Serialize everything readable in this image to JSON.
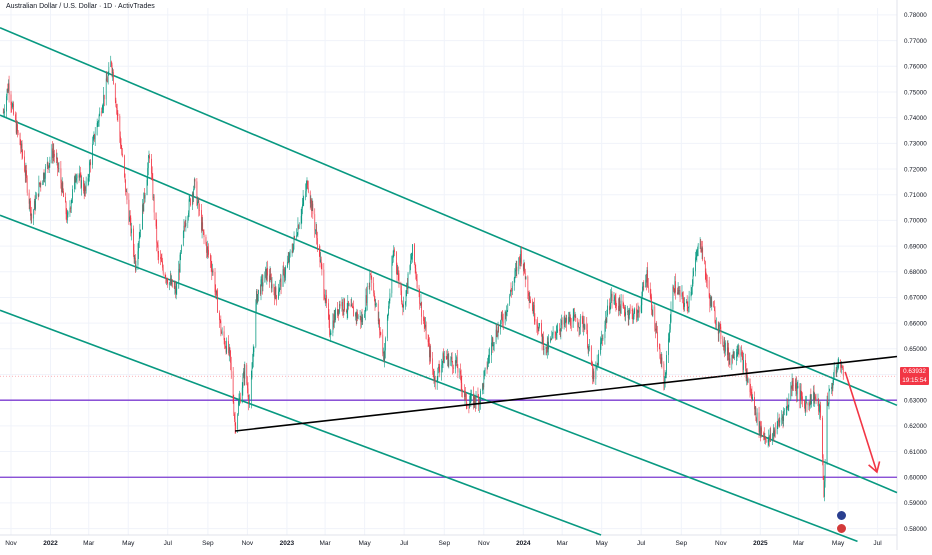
{
  "chart_data": {
    "type": "line",
    "title": "Australian Dollar / U.S. Dollar · 1D · ActivTrades",
    "last_price": "0.63932",
    "countdown": "19:15:54",
    "x_ticks": [
      "Nov",
      "2022",
      "Mar",
      "May",
      "Jul",
      "Sep",
      "Nov",
      "2023",
      "Mar",
      "May",
      "Jul",
      "Sep",
      "Nov",
      "2024",
      "Mar",
      "May",
      "Jul",
      "Sep",
      "Nov",
      "2025",
      "Mar",
      "May",
      "Jul"
    ],
    "y_ticks": [
      "0.78000",
      "0.77000",
      "0.76000",
      "0.75000",
      "0.74000",
      "0.73000",
      "0.72000",
      "0.71000",
      "0.70000",
      "0.69000",
      "0.68000",
      "0.67000",
      "0.66000",
      "0.65000",
      "0.64000",
      "0.63000",
      "0.62000",
      "0.61000",
      "0.60000",
      "0.59000",
      "0.58000"
    ],
    "ylim": [
      0.5775,
      0.7827
    ],
    "xlim": [
      "2021-10-15",
      "2025-07-31"
    ],
    "price_path": [
      [
        "2021-10-20",
        0.742
      ],
      [
        "2021-10-28",
        0.753
      ],
      [
        "2021-11-05",
        0.741
      ],
      [
        "2021-11-20",
        0.724
      ],
      [
        "2021-12-03",
        0.701
      ],
      [
        "2021-12-15",
        0.714
      ],
      [
        "2022-01-05",
        0.727
      ],
      [
        "2022-01-15",
        0.718
      ],
      [
        "2022-01-27",
        0.7
      ],
      [
        "2022-02-10",
        0.719
      ],
      [
        "2022-02-24",
        0.711
      ],
      [
        "2022-03-10",
        0.733
      ],
      [
        "2022-03-25",
        0.749
      ],
      [
        "2022-04-05",
        0.762
      ],
      [
        "2022-04-14",
        0.742
      ],
      [
        "2022-04-28",
        0.71
      ],
      [
        "2022-05-12",
        0.683
      ],
      [
        "2022-05-26",
        0.71
      ],
      [
        "2022-06-03",
        0.726
      ],
      [
        "2022-06-16",
        0.686
      ],
      [
        "2022-07-01",
        0.677
      ],
      [
        "2022-07-14",
        0.672
      ],
      [
        "2022-07-28",
        0.7
      ],
      [
        "2022-08-11",
        0.714
      ],
      [
        "2022-08-25",
        0.694
      ],
      [
        "2022-09-08",
        0.681
      ],
      [
        "2022-09-22",
        0.656
      ],
      [
        "2022-10-05",
        0.647
      ],
      [
        "2022-10-13",
        0.62
      ],
      [
        "2022-10-28",
        0.642
      ],
      [
        "2022-11-05",
        0.628
      ],
      [
        "2022-11-15",
        0.67
      ],
      [
        "2022-12-01",
        0.68
      ],
      [
        "2022-12-15",
        0.671
      ],
      [
        "2023-01-05",
        0.685
      ],
      [
        "2023-01-20",
        0.7
      ],
      [
        "2023-02-02",
        0.715
      ],
      [
        "2023-02-20",
        0.687
      ],
      [
        "2023-03-08",
        0.657
      ],
      [
        "2023-03-24",
        0.668
      ],
      [
        "2023-04-10",
        0.665
      ],
      [
        "2023-04-28",
        0.661
      ],
      [
        "2023-05-10",
        0.68
      ],
      [
        "2023-05-31",
        0.647
      ],
      [
        "2023-06-15",
        0.689
      ],
      [
        "2023-06-30",
        0.666
      ],
      [
        "2023-07-14",
        0.688
      ],
      [
        "2023-07-28",
        0.665
      ],
      [
        "2023-08-17",
        0.638
      ],
      [
        "2023-09-01",
        0.647
      ],
      [
        "2023-09-20",
        0.644
      ],
      [
        "2023-10-05",
        0.629
      ],
      [
        "2023-10-26",
        0.631
      ],
      [
        "2023-11-14",
        0.653
      ],
      [
        "2023-12-04",
        0.664
      ],
      [
        "2023-12-28",
        0.687
      ],
      [
        "2024-01-12",
        0.669
      ],
      [
        "2024-02-05",
        0.649
      ],
      [
        "2024-02-22",
        0.658
      ],
      [
        "2024-03-12",
        0.661
      ],
      [
        "2024-04-05",
        0.66
      ],
      [
        "2024-04-19",
        0.637
      ],
      [
        "2024-05-02",
        0.655
      ],
      [
        "2024-05-15",
        0.67
      ],
      [
        "2024-06-05",
        0.665
      ],
      [
        "2024-06-25",
        0.663
      ],
      [
        "2024-07-10",
        0.679
      ],
      [
        "2024-07-25",
        0.654
      ],
      [
        "2024-08-06",
        0.637
      ],
      [
        "2024-08-20",
        0.675
      ],
      [
        "2024-09-10",
        0.666
      ],
      [
        "2024-09-30",
        0.693
      ],
      [
        "2024-10-14",
        0.67
      ],
      [
        "2024-10-31",
        0.656
      ],
      [
        "2024-11-15",
        0.646
      ],
      [
        "2024-11-28",
        0.651
      ],
      [
        "2024-12-12",
        0.638
      ],
      [
        "2024-12-31",
        0.619
      ],
      [
        "2025-01-14",
        0.614
      ],
      [
        "2025-01-31",
        0.622
      ],
      [
        "2025-02-12",
        0.628
      ],
      [
        "2025-02-20",
        0.638
      ],
      [
        "2025-03-10",
        0.628
      ],
      [
        "2025-03-25",
        0.632
      ],
      [
        "2025-04-04",
        0.625
      ],
      [
        "2025-04-09",
        0.592
      ],
      [
        "2025-04-14",
        0.629
      ],
      [
        "2025-04-28",
        0.642
      ],
      [
        "2025-05-05",
        0.645
      ],
      [
        "2025-05-09",
        0.6393
      ]
    ],
    "channel_lines": [
      {
        "from": [
          "2021-10-15",
          0.775
        ],
        "to": [
          "2025-07-31",
          0.628
        ],
        "color": "#089981"
      },
      {
        "from": [
          "2021-10-15",
          0.741
        ],
        "to": [
          "2025-07-31",
          0.594
        ],
        "color": "#089981"
      },
      {
        "from": [
          "2021-10-15",
          0.702
        ],
        "to": [
          "2025-05-31",
          0.575
        ],
        "color": "#089981"
      },
      {
        "from": [
          "2021-10-15",
          0.665
        ],
        "to": [
          "2024-04-30",
          0.5775
        ],
        "color": "#089981"
      }
    ],
    "trend_line": {
      "from": [
        "2022-10-13",
        0.618
      ],
      "to": [
        "2025-07-31",
        0.647
      ],
      "color": "#000000"
    },
    "horizontal_levels": [
      {
        "value": 0.63,
        "color": "#7b3ad1"
      },
      {
        "value": 0.6,
        "color": "#7b3ad1"
      }
    ],
    "forecast_arrow": {
      "from": [
        "2025-05-12",
        0.641
      ],
      "to": [
        "2025-06-30",
        0.602
      ],
      "color": "#f23645"
    },
    "colors": {
      "up": "#089981",
      "down": "#f23645",
      "axis_text": "#131722",
      "grid": "#f0f3fa"
    }
  }
}
